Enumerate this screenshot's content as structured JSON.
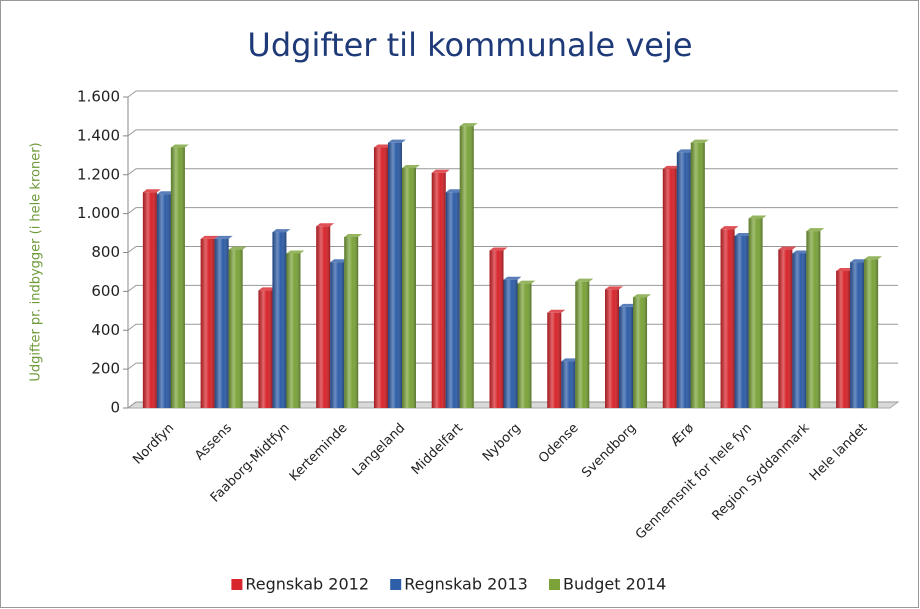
{
  "chart_data": {
    "type": "bar",
    "title": "Udgifter til kommunale veje",
    "y_label": "Udgifter pr. indbygger (i hele kroner)",
    "categories": [
      "Nordfyn",
      "Assens",
      "Faaborg-Midtfyn",
      "Kerteminde",
      "Langeland",
      "Middelfart",
      "Nyborg",
      "Odense",
      "Svendborg",
      "Ærø",
      "Gennemsnit for hele fyn",
      "Region Syddanmark",
      "Hele landet"
    ],
    "series": [
      {
        "name": "Regnskab 2012",
        "color": "#d7262c",
        "values": [
          1110,
          870,
          605,
          935,
          1340,
          1210,
          810,
          490,
          610,
          1230,
          920,
          815,
          705
        ]
      },
      {
        "name": "Regnskab 2013",
        "color": "#2f5ea8",
        "values": [
          1100,
          870,
          905,
          750,
          1365,
          1110,
          660,
          240,
          520,
          1315,
          885,
          795,
          750
        ]
      },
      {
        "name": "Budget 2014",
        "color": "#7ba33a",
        "values": [
          1340,
          815,
          795,
          880,
          1235,
          1450,
          640,
          650,
          570,
          1365,
          975,
          910,
          765
        ]
      }
    ],
    "ylim": [
      0,
      1600
    ],
    "yticks": [
      0,
      200,
      400,
      600,
      800,
      {
        "value": 1000,
        "label": "1.000"
      },
      {
        "value": 1200,
        "label": "1.200"
      },
      {
        "value": 1400,
        "label": "1.400"
      },
      {
        "value": 1600,
        "label": "1.600"
      }
    ],
    "grid": true,
    "legend": "bottom"
  }
}
